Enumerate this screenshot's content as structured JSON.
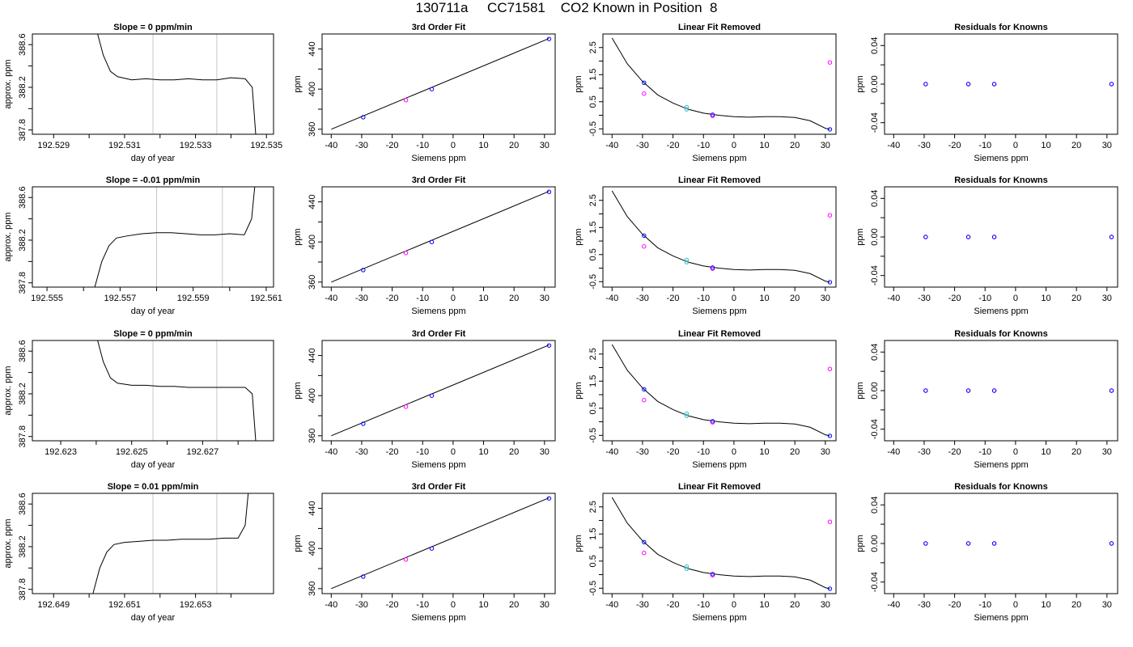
{
  "title": "130711a     CC71581    CO2 Known in Position  8",
  "colors": {
    "line": "#000000",
    "vline": "#c8c8c8",
    "known_blue": "#0000ff",
    "known_magenta": "#ff00ff",
    "point_cyan": "#3bb7c9"
  },
  "chart_data": [
    {
      "type": "line",
      "panel": "timeseries",
      "row": 0,
      "title": "Slope =  0  ppm/min",
      "xlabel": "day of year",
      "ylabel": "approx. ppm",
      "xlim": [
        192.5284,
        192.5352
      ],
      "ylim": [
        387.76,
        388.7
      ],
      "xticks": [
        "192.529",
        "192.531",
        "192.533",
        "192.535"
      ],
      "yticks": [
        "387.8",
        "388.2",
        "388.6"
      ],
      "vlines": [
        192.5318,
        192.5336
      ],
      "series": [
        {
          "x": [
            192.5302,
            192.5304,
            192.5306,
            192.5308,
            192.5312,
            192.5316,
            192.532,
            192.5324,
            192.5328,
            192.5332,
            192.5336,
            192.534,
            192.5344,
            192.5346,
            192.5347
          ],
          "y": [
            388.75,
            388.5,
            388.35,
            388.3,
            388.27,
            388.28,
            388.27,
            388.27,
            388.28,
            388.27,
            388.27,
            388.29,
            388.28,
            388.2,
            387.75
          ]
        }
      ]
    },
    {
      "type": "line",
      "panel": "fit",
      "row": 0,
      "title": "3rd Order Fit",
      "xlabel": "Siemens ppm",
      "ylabel": "ppm",
      "xlim": [
        -43,
        33.5
      ],
      "ylim": [
        355,
        455
      ],
      "xticks": [
        "-40",
        "-30",
        "-20",
        "-10",
        "0",
        "10",
        "20",
        "30"
      ],
      "yticks": [
        "360",
        "400",
        "440"
      ],
      "line": {
        "x": [
          -40,
          31.5
        ],
        "y": [
          360,
          450.5
        ]
      },
      "points_blue": {
        "x": [
          -29.5,
          -7,
          31.5
        ],
        "y": [
          372,
          400,
          450
        ]
      },
      "points_magenta": {
        "x": [
          -15.5
        ],
        "y": [
          389
        ]
      }
    },
    {
      "type": "scatter",
      "panel": "linear_fit_removed",
      "row": 0,
      "title": "Linear Fit Removed",
      "xlabel": "Siemens ppm",
      "ylabel": "ppm",
      "xlim": [
        -43,
        33.5
      ],
      "ylim": [
        -0.7,
        3.0
      ],
      "xticks": [
        "-40",
        "-30",
        "-20",
        "-10",
        "0",
        "10",
        "20",
        "30"
      ],
      "yticks": [
        "-0.5",
        "0.5",
        "1.5",
        "2.5"
      ],
      "curve": {
        "x": [
          -40,
          -35,
          -30,
          -25,
          -20,
          -15,
          -10,
          -5,
          0,
          5,
          10,
          15,
          20,
          25,
          30,
          31.5
        ],
        "y": [
          2.85,
          1.9,
          1.25,
          0.75,
          0.45,
          0.22,
          0.08,
          0.0,
          -0.05,
          -0.07,
          -0.05,
          -0.05,
          -0.08,
          -0.2,
          -0.48,
          -0.52
        ]
      },
      "points_blue": {
        "x": [
          -29.5,
          -7,
          31.5
        ],
        "y": [
          1.2,
          0.02,
          -0.52
        ]
      },
      "points_magenta": {
        "x": [
          -29.5,
          -7,
          31.5
        ],
        "y": [
          0.8,
          -0.02,
          1.95
        ]
      },
      "points_cyan": {
        "x": [
          -15.5,
          -15.5
        ],
        "y": [
          0.22,
          0.3
        ]
      }
    },
    {
      "type": "scatter",
      "panel": "residuals",
      "row": 0,
      "title": "Residuals for Knowns",
      "xlabel": "Siemens ppm",
      "ylabel": "ppm",
      "xlim": [
        -43,
        33.5
      ],
      "ylim": [
        -0.052,
        0.052
      ],
      "xticks": [
        "-40",
        "-30",
        "-20",
        "-10",
        "0",
        "10",
        "20",
        "30"
      ],
      "yticks": [
        "-0.04",
        "0.00",
        "0.04"
      ],
      "points_blue": {
        "x": [
          -29.5,
          -15.5,
          -7,
          31.5
        ],
        "y": [
          0,
          0,
          0,
          0
        ]
      },
      "points_magenta": {
        "x": [
          -29.5,
          -15.5,
          -7,
          31.5
        ],
        "y": [
          0,
          0,
          0,
          0
        ]
      }
    },
    {
      "type": "line",
      "panel": "timeseries",
      "row": 1,
      "title": "Slope =  -0.01  ppm/min",
      "xlabel": "day of year",
      "ylabel": "approx. ppm",
      "xlim": [
        192.5546,
        192.5612
      ],
      "ylim": [
        387.76,
        388.7
      ],
      "xticks": [
        "192.555",
        "192.557",
        "192.559",
        "192.561"
      ],
      "yticks": [
        "387.8",
        "388.2",
        "388.6"
      ],
      "vlines": [
        192.558,
        192.5598
      ],
      "series": [
        {
          "x": [
            192.5563,
            192.5565,
            192.5567,
            192.5569,
            192.5572,
            192.5576,
            192.558,
            192.5584,
            192.5588,
            192.5592,
            192.5596,
            192.56,
            192.5604,
            192.5606,
            192.5607
          ],
          "y": [
            387.75,
            388.0,
            388.15,
            388.22,
            388.24,
            388.26,
            388.27,
            388.27,
            388.26,
            388.25,
            388.25,
            388.26,
            388.25,
            388.4,
            388.75
          ]
        }
      ]
    },
    {
      "type": "line",
      "panel": "fit",
      "row": 1,
      "title": "3rd Order Fit",
      "xlabel": "Siemens ppm",
      "ylabel": "ppm",
      "xlim": [
        -43,
        33.5
      ],
      "ylim": [
        355,
        455
      ],
      "xticks": [
        "-40",
        "-30",
        "-20",
        "-10",
        "0",
        "10",
        "20",
        "30"
      ],
      "yticks": [
        "360",
        "400",
        "440"
      ],
      "line": {
        "x": [
          -40,
          31.5
        ],
        "y": [
          360,
          450.5
        ]
      },
      "points_blue": {
        "x": [
          -29.5,
          -7,
          31.5
        ],
        "y": [
          372,
          400,
          450
        ]
      },
      "points_magenta": {
        "x": [
          -15.5
        ],
        "y": [
          389
        ]
      }
    },
    {
      "type": "scatter",
      "panel": "linear_fit_removed",
      "row": 1,
      "title": "Linear Fit Removed",
      "xlabel": "Siemens ppm",
      "ylabel": "ppm",
      "xlim": [
        -43,
        33.5
      ],
      "ylim": [
        -0.7,
        3.0
      ],
      "xticks": [
        "-40",
        "-30",
        "-20",
        "-10",
        "0",
        "10",
        "20",
        "30"
      ],
      "yticks": [
        "-0.5",
        "0.5",
        "1.5",
        "2.5"
      ],
      "curve": {
        "x": [
          -40,
          -35,
          -30,
          -25,
          -20,
          -15,
          -10,
          -5,
          0,
          5,
          10,
          15,
          20,
          25,
          30,
          31.5
        ],
        "y": [
          2.85,
          1.9,
          1.25,
          0.75,
          0.45,
          0.22,
          0.08,
          0.0,
          -0.05,
          -0.07,
          -0.05,
          -0.05,
          -0.08,
          -0.2,
          -0.48,
          -0.52
        ]
      },
      "points_blue": {
        "x": [
          -29.5,
          -7,
          31.5
        ],
        "y": [
          1.2,
          0.02,
          -0.52
        ]
      },
      "points_magenta": {
        "x": [
          -29.5,
          -7,
          31.5
        ],
        "y": [
          0.8,
          -0.02,
          1.95
        ]
      },
      "points_cyan": {
        "x": [
          -15.5,
          -15.5
        ],
        "y": [
          0.22,
          0.3
        ]
      }
    },
    {
      "type": "scatter",
      "panel": "residuals",
      "row": 1,
      "title": "Residuals for Knowns",
      "xlabel": "Siemens ppm",
      "ylabel": "ppm",
      "xlim": [
        -43,
        33.5
      ],
      "ylim": [
        -0.052,
        0.052
      ],
      "xticks": [
        "-40",
        "-30",
        "-20",
        "-10",
        "0",
        "10",
        "20",
        "30"
      ],
      "yticks": [
        "-0.04",
        "0.00",
        "0.04"
      ],
      "points_blue": {
        "x": [
          -29.5,
          -15.5,
          -7,
          31.5
        ],
        "y": [
          0,
          0,
          0,
          0
        ]
      },
      "points_magenta": {
        "x": [
          -29.5,
          -15.5,
          -7,
          31.5
        ],
        "y": [
          0,
          0,
          0,
          0
        ]
      }
    },
    {
      "type": "line",
      "panel": "timeseries",
      "row": 2,
      "title": "Slope =  0  ppm/min",
      "xlabel": "day of year",
      "ylabel": "approx. ppm",
      "xlim": [
        192.6222,
        192.629
      ],
      "ylim": [
        387.76,
        388.7
      ],
      "xticks": [
        "192.623",
        "192.625",
        "192.627"
      ],
      "yticks": [
        "387.8",
        "388.2",
        "388.6"
      ],
      "vlines": [
        192.6256,
        192.6274
      ],
      "series": [
        {
          "x": [
            192.624,
            192.6242,
            192.6244,
            192.6246,
            192.625,
            192.6254,
            192.6258,
            192.6262,
            192.6266,
            192.627,
            192.6274,
            192.6278,
            192.6282,
            192.6284,
            192.6285
          ],
          "y": [
            388.75,
            388.5,
            388.35,
            388.3,
            388.28,
            388.28,
            388.27,
            388.27,
            388.26,
            388.26,
            388.26,
            388.26,
            388.26,
            388.2,
            387.75
          ]
        }
      ]
    },
    {
      "type": "line",
      "panel": "fit",
      "row": 2,
      "title": "3rd Order Fit",
      "xlabel": "Siemens ppm",
      "ylabel": "ppm",
      "xlim": [
        -43,
        33.5
      ],
      "ylim": [
        355,
        455
      ],
      "xticks": [
        "-40",
        "-30",
        "-20",
        "-10",
        "0",
        "10",
        "20",
        "30"
      ],
      "yticks": [
        "360",
        "400",
        "440"
      ],
      "line": {
        "x": [
          -40,
          31.5
        ],
        "y": [
          360,
          450.5
        ]
      },
      "points_blue": {
        "x": [
          -29.5,
          -7,
          31.5
        ],
        "y": [
          372,
          400,
          450
        ]
      },
      "points_magenta": {
        "x": [
          -15.5
        ],
        "y": [
          389
        ]
      }
    },
    {
      "type": "scatter",
      "panel": "linear_fit_removed",
      "row": 2,
      "title": "Linear Fit Removed",
      "xlabel": "Siemens ppm",
      "ylabel": "ppm",
      "xlim": [
        -43,
        33.5
      ],
      "ylim": [
        -0.7,
        3.0
      ],
      "xticks": [
        "-40",
        "-30",
        "-20",
        "-10",
        "0",
        "10",
        "20",
        "30"
      ],
      "yticks": [
        "-0.5",
        "0.5",
        "1.5",
        "2.5"
      ],
      "curve": {
        "x": [
          -40,
          -35,
          -30,
          -25,
          -20,
          -15,
          -10,
          -5,
          0,
          5,
          10,
          15,
          20,
          25,
          30,
          31.5
        ],
        "y": [
          2.85,
          1.9,
          1.25,
          0.75,
          0.45,
          0.22,
          0.08,
          0.0,
          -0.05,
          -0.07,
          -0.05,
          -0.05,
          -0.08,
          -0.2,
          -0.48,
          -0.52
        ]
      },
      "points_blue": {
        "x": [
          -29.5,
          -7,
          31.5
        ],
        "y": [
          1.2,
          0.02,
          -0.52
        ]
      },
      "points_magenta": {
        "x": [
          -29.5,
          -7,
          31.5
        ],
        "y": [
          0.8,
          -0.02,
          1.95
        ]
      },
      "points_cyan": {
        "x": [
          -15.5,
          -15.5
        ],
        "y": [
          0.22,
          0.3
        ]
      }
    },
    {
      "type": "scatter",
      "panel": "residuals",
      "row": 2,
      "title": "Residuals for Knowns",
      "xlabel": "Siemens ppm",
      "ylabel": "ppm",
      "xlim": [
        -43,
        33.5
      ],
      "ylim": [
        -0.052,
        0.052
      ],
      "xticks": [
        "-40",
        "-30",
        "-20",
        "-10",
        "0",
        "10",
        "20",
        "30"
      ],
      "yticks": [
        "-0.04",
        "0.00",
        "0.04"
      ],
      "points_blue": {
        "x": [
          -29.5,
          -15.5,
          -7,
          31.5
        ],
        "y": [
          0,
          0,
          0,
          0
        ]
      },
      "points_magenta": {
        "x": [
          -29.5,
          -15.5,
          -7,
          31.5
        ],
        "y": [
          0,
          0,
          0,
          0
        ]
      }
    },
    {
      "type": "line",
      "panel": "timeseries",
      "row": 3,
      "title": "Slope =  0.01  ppm/min",
      "xlabel": "day of year",
      "ylabel": "approx. ppm",
      "xlim": [
        192.6484,
        192.6552
      ],
      "ylim": [
        387.76,
        388.7
      ],
      "xticks": [
        "192.649",
        "192.651",
        "192.653"
      ],
      "yticks": [
        "387.8",
        "388.2",
        "388.6"
      ],
      "vlines": [
        192.6518,
        192.6536
      ],
      "series": [
        {
          "x": [
            192.6501,
            192.6503,
            192.6505,
            192.6507,
            192.651,
            192.6514,
            192.6518,
            192.6522,
            192.6526,
            192.653,
            192.6534,
            192.6538,
            192.6542,
            192.6544,
            192.6545
          ],
          "y": [
            387.75,
            388.0,
            388.15,
            388.22,
            388.24,
            388.25,
            388.26,
            388.26,
            388.27,
            388.27,
            388.27,
            388.28,
            388.28,
            388.4,
            388.75
          ]
        }
      ]
    },
    {
      "type": "line",
      "panel": "fit",
      "row": 3,
      "title": "3rd Order Fit",
      "xlabel": "Siemens ppm",
      "ylabel": "ppm",
      "xlim": [
        -43,
        33.5
      ],
      "ylim": [
        355,
        455
      ],
      "xticks": [
        "-40",
        "-30",
        "-20",
        "-10",
        "0",
        "10",
        "20",
        "30"
      ],
      "yticks": [
        "360",
        "400",
        "440"
      ],
      "line": {
        "x": [
          -40,
          31.5
        ],
        "y": [
          360,
          450.5
        ]
      },
      "points_blue": {
        "x": [
          -29.5,
          -7,
          31.5
        ],
        "y": [
          372,
          400,
          450
        ]
      },
      "points_magenta": {
        "x": [
          -15.5
        ],
        "y": [
          389
        ]
      }
    },
    {
      "type": "scatter",
      "panel": "linear_fit_removed",
      "row": 3,
      "title": "Linear Fit Removed",
      "xlabel": "Siemens ppm",
      "ylabel": "ppm",
      "xlim": [
        -43,
        33.5
      ],
      "ylim": [
        -0.7,
        3.0
      ],
      "xticks": [
        "-40",
        "-30",
        "-20",
        "-10",
        "0",
        "10",
        "20",
        "30"
      ],
      "yticks": [
        "-0.5",
        "0.5",
        "1.5",
        "2.5"
      ],
      "curve": {
        "x": [
          -40,
          -35,
          -30,
          -25,
          -20,
          -15,
          -10,
          -5,
          0,
          5,
          10,
          15,
          20,
          25,
          30,
          31.5
        ],
        "y": [
          2.85,
          1.9,
          1.25,
          0.75,
          0.45,
          0.22,
          0.08,
          0.0,
          -0.05,
          -0.07,
          -0.05,
          -0.05,
          -0.08,
          -0.2,
          -0.48,
          -0.52
        ]
      },
      "points_blue": {
        "x": [
          -29.5,
          -7,
          31.5
        ],
        "y": [
          1.2,
          0.02,
          -0.52
        ]
      },
      "points_magenta": {
        "x": [
          -29.5,
          -7,
          31.5
        ],
        "y": [
          0.8,
          -0.02,
          1.95
        ]
      },
      "points_cyan": {
        "x": [
          -15.5,
          -15.5
        ],
        "y": [
          0.22,
          0.3
        ]
      }
    },
    {
      "type": "scatter",
      "panel": "residuals",
      "row": 3,
      "title": "Residuals for Knowns",
      "xlabel": "Siemens ppm",
      "ylabel": "ppm",
      "xlim": [
        -43,
        33.5
      ],
      "ylim": [
        -0.052,
        0.052
      ],
      "xticks": [
        "-40",
        "-30",
        "-20",
        "-10",
        "0",
        "10",
        "20",
        "30"
      ],
      "yticks": [
        "-0.04",
        "0.00",
        "0.04"
      ],
      "points_blue": {
        "x": [
          -29.5,
          -15.5,
          -7,
          31.5
        ],
        "y": [
          0,
          0,
          0,
          0
        ]
      },
      "points_magenta": {
        "x": [
          -29.5,
          -15.5,
          -7,
          31.5
        ],
        "y": [
          0,
          0,
          0,
          0
        ]
      }
    }
  ]
}
